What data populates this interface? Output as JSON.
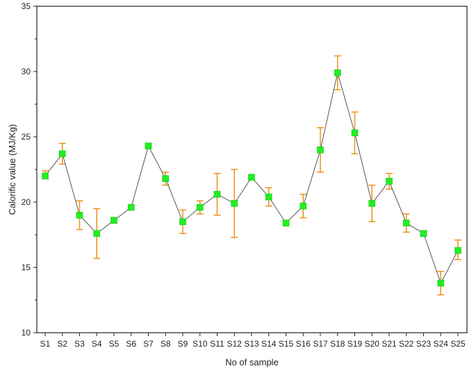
{
  "chart_data": {
    "type": "line",
    "title": "",
    "xlabel": "No of sample",
    "ylabel": "Calorific value (MJ/Kg)",
    "ylim": [
      10,
      35
    ],
    "yticks": [
      10,
      15,
      20,
      25,
      30,
      35
    ],
    "grid": false,
    "categories": [
      "S1",
      "S2",
      "S3",
      "S4",
      "S5",
      "S6",
      "S7",
      "S8",
      "S9",
      "S10",
      "S11",
      "S12",
      "S13",
      "S14",
      "S15",
      "S16",
      "S17",
      "S18",
      "S19",
      "S20",
      "S21",
      "S22",
      "S23",
      "S24",
      "S25"
    ],
    "series": [
      {
        "values": [
          22.0,
          23.7,
          19.0,
          17.6,
          18.6,
          19.6,
          24.3,
          21.8,
          18.5,
          19.6,
          20.6,
          19.9,
          21.9,
          20.4,
          18.4,
          19.7,
          24.0,
          29.9,
          25.3,
          19.9,
          21.6,
          18.4,
          17.6,
          13.8,
          16.3
        ],
        "error_low": [
          21.8,
          22.9,
          17.9,
          15.7,
          18.4,
          19.5,
          24.2,
          21.3,
          17.6,
          19.1,
          19.0,
          17.3,
          21.7,
          19.7,
          18.3,
          18.8,
          22.3,
          28.6,
          23.7,
          18.5,
          21.0,
          17.7,
          17.4,
          12.9,
          15.6
        ],
        "error_high": [
          22.4,
          24.5,
          20.1,
          19.5,
          18.8,
          19.7,
          24.4,
          22.3,
          19.4,
          20.1,
          22.2,
          22.5,
          22.0,
          21.1,
          18.5,
          20.6,
          25.7,
          31.2,
          26.9,
          21.3,
          22.2,
          19.1,
          17.8,
          14.7,
          17.1
        ]
      }
    ]
  },
  "colors": {
    "line": "#555555",
    "marker": "#22ee22",
    "error_bar": "#ee8f1a",
    "axis": "#222222"
  }
}
